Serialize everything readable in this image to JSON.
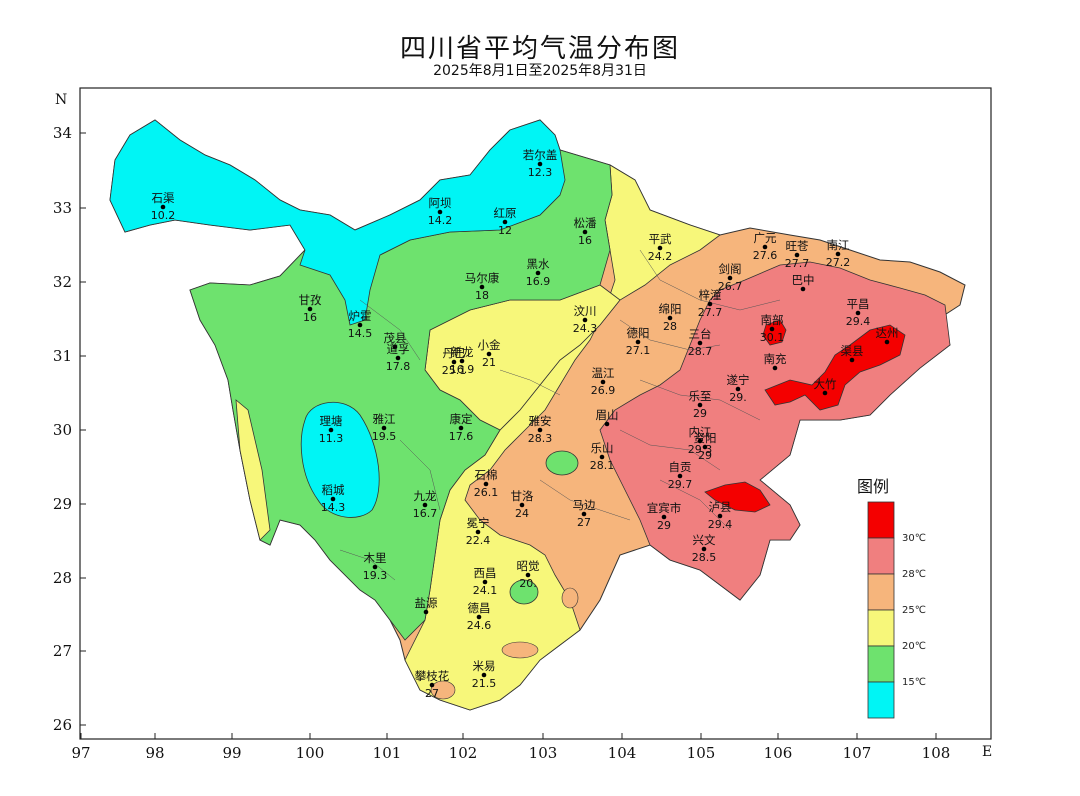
{
  "title": "四川省平均气温分布图",
  "subtitle": "2025年8月1日至2025年8月31日",
  "axes": {
    "north_label": "N",
    "east_label": "E",
    "lon_ticks": [
      "97",
      "98",
      "99",
      "100",
      "101",
      "102",
      "103",
      "104",
      "105",
      "106",
      "107",
      "108"
    ],
    "lat_ticks": [
      "34",
      "33",
      "32",
      "31",
      "30",
      "29",
      "28",
      "27",
      "26"
    ]
  },
  "colors": {
    "below15": "#00f5f5",
    "15to20": "#6ee26e",
    "20to25": "#f7f77a",
    "25to28": "#f6b57c",
    "28to30": "#f07f7f",
    "above30": "#f40000"
  },
  "legend": {
    "title": "图例",
    "labels": [
      "30℃",
      "28℃",
      "25℃",
      "20℃",
      "15℃"
    ]
  },
  "stations": [
    {
      "name": "石渠",
      "value": "10.2"
    },
    {
      "name": "若尔盖",
      "value": "12.3"
    },
    {
      "name": "阿坝",
      "value": "14.2"
    },
    {
      "name": "红原",
      "value": "12"
    },
    {
      "name": "松潘",
      "value": "16"
    },
    {
      "name": "平武",
      "value": "24.2"
    },
    {
      "name": "广元",
      "value": "27.6"
    },
    {
      "name": "旺苍",
      "value": "27.7"
    },
    {
      "name": "南江",
      "value": "27.2"
    },
    {
      "name": "剑阁",
      "value": "26.7"
    },
    {
      "name": "巴中",
      "value": ""
    },
    {
      "name": "平昌",
      "value": "29.4"
    },
    {
      "name": "梓潼",
      "value": "27.7"
    },
    {
      "name": "马尔康",
      "value": "18"
    },
    {
      "name": "黑水",
      "value": "16.9"
    },
    {
      "name": "甘孜",
      "value": "16"
    },
    {
      "name": "炉霍",
      "value": "14.5"
    },
    {
      "name": "茂县",
      "value": ""
    },
    {
      "name": "汶川",
      "value": "24.3"
    },
    {
      "name": "绵阳",
      "value": "28"
    },
    {
      "name": "德阳",
      "value": "27.1"
    },
    {
      "name": "三台",
      "value": "28.7"
    },
    {
      "name": "南部",
      "value": "30.1"
    },
    {
      "name": "达州",
      "value": ""
    },
    {
      "name": "新龙",
      "value": "16.9"
    },
    {
      "name": "道孚",
      "value": "17.8"
    },
    {
      "name": "丹巴",
      "value": "25.1"
    },
    {
      "name": "小金",
      "value": "21"
    },
    {
      "name": "温江",
      "value": "26.9"
    },
    {
      "name": "南充",
      "value": ""
    },
    {
      "name": "渠县",
      "value": ""
    },
    {
      "name": "大竹",
      "value": ""
    },
    {
      "name": "乐至",
      "value": "29"
    },
    {
      "name": "遂宁",
      "value": "29."
    },
    {
      "name": "理塘",
      "value": "11.3"
    },
    {
      "name": "雅江",
      "value": "19.5"
    },
    {
      "name": "康定",
      "value": "17.6"
    },
    {
      "name": "雅安",
      "value": "28.3"
    },
    {
      "name": "眉山",
      "value": ""
    },
    {
      "name": "资阳",
      "value": "29"
    },
    {
      "name": "内江",
      "value": "29.3"
    },
    {
      "name": "乐山",
      "value": "28.1"
    },
    {
      "name": "自贡",
      "value": "29.7"
    },
    {
      "name": "稻城",
      "value": "14.3"
    },
    {
      "name": "九龙",
      "value": "16.7"
    },
    {
      "name": "石棉",
      "value": "26.1"
    },
    {
      "name": "甘洛",
      "value": "24"
    },
    {
      "name": "马边",
      "value": "27"
    },
    {
      "name": "宜宾市",
      "value": "29"
    },
    {
      "name": "泸县",
      "value": "29.4"
    },
    {
      "name": "兴文",
      "value": "28.5"
    },
    {
      "name": "冕宁",
      "value": "22.4"
    },
    {
      "name": "木里",
      "value": "19.3"
    },
    {
      "name": "西昌",
      "value": "24.1"
    },
    {
      "name": "昭觉",
      "value": "20."
    },
    {
      "name": "德昌",
      "value": "24.6"
    },
    {
      "name": "盐源",
      "value": ""
    },
    {
      "name": "米易",
      "value": "21.5"
    },
    {
      "name": "攀枝花",
      "value": "27"
    }
  ]
}
